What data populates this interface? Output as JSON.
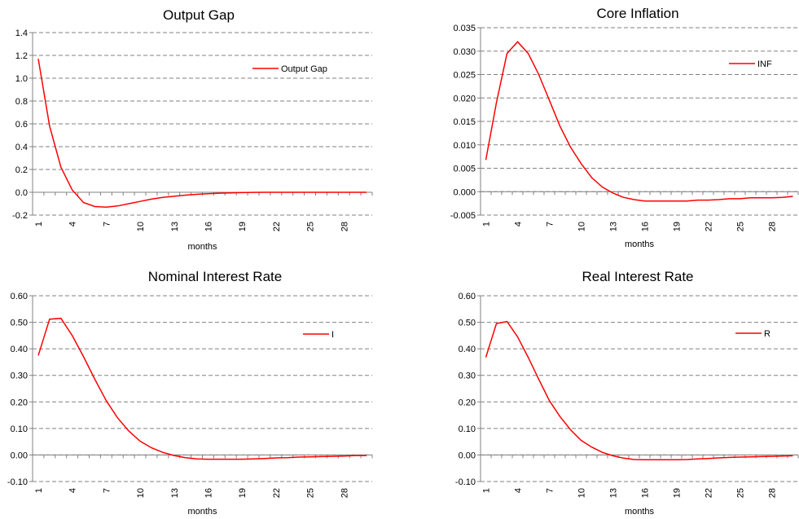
{
  "chart_data": [
    {
      "type": "line",
      "title": "Output Gap",
      "xlabel": "months",
      "ylabel": "",
      "ylim": [
        -0.2,
        1.4
      ],
      "yticks": [
        "1.4",
        "1.2",
        "1.0",
        "0.8",
        "0.6",
        "0.4",
        "0.2",
        "0.0",
        "-0.2"
      ],
      "ytick_values": [
        1.4,
        1.2,
        1.0,
        0.8,
        0.6,
        0.4,
        0.2,
        0.0,
        -0.2
      ],
      "xticks": [
        "1",
        "4",
        "7",
        "10",
        "13",
        "16",
        "19",
        "22",
        "25",
        "28"
      ],
      "grid": true,
      "legend": "top-right",
      "color": "#ff0000",
      "series": [
        {
          "name": "Output Gap",
          "x": [
            1,
            2,
            3,
            4,
            5,
            6,
            7,
            8,
            9,
            10,
            11,
            12,
            13,
            14,
            15,
            16,
            17,
            18,
            19,
            20,
            21,
            22,
            23,
            24,
            25,
            26,
            27,
            28,
            29,
            30
          ],
          "values": [
            1.17,
            0.58,
            0.22,
            0.02,
            -0.09,
            -0.125,
            -0.13,
            -0.12,
            -0.1,
            -0.08,
            -0.06,
            -0.045,
            -0.035,
            -0.025,
            -0.018,
            -0.012,
            -0.008,
            -0.005,
            -0.003,
            -0.001,
            0.0,
            0.0,
            0.0,
            0.0,
            0.0,
            0.0,
            0.0,
            0.0,
            0.0,
            0.0
          ]
        }
      ]
    },
    {
      "type": "line",
      "title": "Core Inflation",
      "xlabel": "months",
      "ylabel": "",
      "ylim": [
        -0.005,
        0.035
      ],
      "yticks": [
        "0.035",
        "0.030",
        "0.025",
        "0.020",
        "0.015",
        "0.010",
        "0.005",
        "0.000",
        "-0.005"
      ],
      "ytick_values": [
        0.035,
        0.03,
        0.025,
        0.02,
        0.015,
        0.01,
        0.005,
        0.0,
        -0.005
      ],
      "xticks": [
        "1",
        "4",
        "7",
        "10",
        "13",
        "16",
        "19",
        "22",
        "25",
        "28"
      ],
      "grid": true,
      "legend": "top-right",
      "color": "#ff0000",
      "series": [
        {
          "name": "INF",
          "x": [
            1,
            2,
            3,
            4,
            5,
            6,
            7,
            8,
            9,
            10,
            11,
            12,
            13,
            14,
            15,
            16,
            17,
            18,
            19,
            20,
            21,
            22,
            23,
            24,
            25,
            26,
            27,
            28,
            29,
            30
          ],
          "values": [
            0.0068,
            0.019,
            0.0295,
            0.032,
            0.0295,
            0.025,
            0.0195,
            0.014,
            0.0095,
            0.006,
            0.003,
            0.001,
            -0.0003,
            -0.0012,
            -0.0017,
            -0.002,
            -0.002,
            -0.002,
            -0.002,
            -0.002,
            -0.0018,
            -0.0018,
            -0.0017,
            -0.0015,
            -0.0015,
            -0.0013,
            -0.0013,
            -0.0013,
            -0.0012,
            -0.001
          ]
        }
      ]
    },
    {
      "type": "line",
      "title": "Nominal Interest Rate",
      "xlabel": "months",
      "ylabel": "",
      "ylim": [
        -0.1,
        0.6
      ],
      "yticks": [
        "0.60",
        "0.50",
        "0.40",
        "0.30",
        "0.20",
        "0.10",
        "0.00",
        "-0.10"
      ],
      "ytick_values": [
        0.6,
        0.5,
        0.4,
        0.3,
        0.2,
        0.1,
        0.0,
        -0.1
      ],
      "xticks": [
        "1",
        "4",
        "7",
        "10",
        "13",
        "16",
        "19",
        "22",
        "25",
        "28"
      ],
      "grid": true,
      "legend": "top-right",
      "color": "#ff0000",
      "series": [
        {
          "name": "I",
          "x": [
            1,
            2,
            3,
            4,
            5,
            6,
            7,
            8,
            9,
            10,
            11,
            12,
            13,
            14,
            15,
            16,
            17,
            18,
            19,
            20,
            21,
            22,
            23,
            24,
            25,
            26,
            27,
            28,
            29,
            30
          ],
          "values": [
            0.375,
            0.512,
            0.515,
            0.45,
            0.37,
            0.285,
            0.205,
            0.14,
            0.09,
            0.052,
            0.027,
            0.01,
            -0.002,
            -0.01,
            -0.015,
            -0.016,
            -0.016,
            -0.016,
            -0.016,
            -0.015,
            -0.013,
            -0.011,
            -0.01,
            -0.008,
            -0.007,
            -0.006,
            -0.005,
            -0.004,
            -0.002,
            -0.002
          ]
        }
      ]
    },
    {
      "type": "line",
      "title": "Real Interest Rate",
      "xlabel": "months",
      "ylabel": "",
      "ylim": [
        -0.1,
        0.6
      ],
      "yticks": [
        "0.60",
        "0.50",
        "0.40",
        "0.30",
        "0.20",
        "0.10",
        "0.00",
        "-0.10"
      ],
      "ytick_values": [
        0.6,
        0.5,
        0.4,
        0.3,
        0.2,
        0.1,
        0.0,
        -0.1
      ],
      "xticks": [
        "1",
        "4",
        "7",
        "10",
        "13",
        "16",
        "19",
        "22",
        "25",
        "28"
      ],
      "grid": true,
      "legend": "top-right",
      "color": "#ff0000",
      "series": [
        {
          "name": "R",
          "x": [
            1,
            2,
            3,
            4,
            5,
            6,
            7,
            8,
            9,
            10,
            11,
            12,
            13,
            14,
            15,
            16,
            17,
            18,
            19,
            20,
            21,
            22,
            23,
            24,
            25,
            26,
            27,
            28,
            29,
            30
          ],
          "values": [
            0.368,
            0.495,
            0.503,
            0.445,
            0.368,
            0.285,
            0.205,
            0.145,
            0.095,
            0.055,
            0.03,
            0.01,
            -0.003,
            -0.012,
            -0.017,
            -0.018,
            -0.018,
            -0.018,
            -0.018,
            -0.017,
            -0.015,
            -0.013,
            -0.011,
            -0.009,
            -0.008,
            -0.007,
            -0.006,
            -0.005,
            -0.004,
            -0.003
          ]
        }
      ]
    }
  ]
}
